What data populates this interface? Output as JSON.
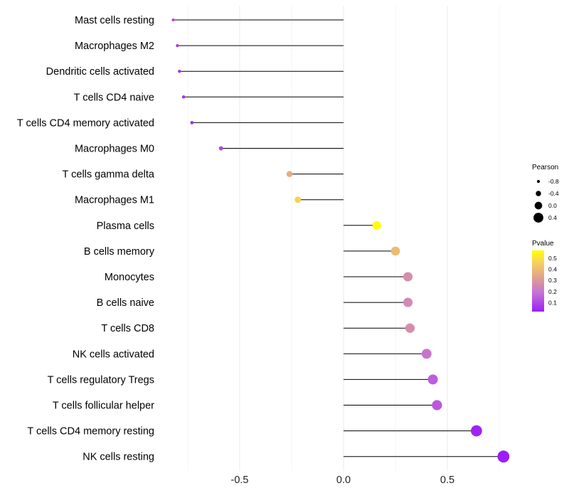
{
  "chart_data": {
    "type": "lollipop",
    "title": "",
    "xlabel": "",
    "ylabel": "",
    "xlim": [
      -0.83,
      0.78
    ],
    "x_ticks": [
      -0.5,
      0.0,
      0.5
    ],
    "x_tick_labels": [
      "-0.5",
      "0.0",
      "0.5"
    ],
    "grid": true,
    "categories": [
      "Mast cells resting",
      "Macrophages M2",
      "Dendritic cells activated",
      "T cells CD4 naive",
      "T cells CD4 memory activated",
      "Macrophages M0",
      "T cells gamma delta",
      "Macrophages M1",
      "Plasma cells",
      "B cells memory",
      "Monocytes",
      "B cells naive",
      "T cells CD8",
      "NK cells activated",
      "T cells regulatory  Tregs",
      "T cells follicular helper",
      "T cells CD4 memory resting",
      "NK cells resting"
    ],
    "pearson": [
      -0.82,
      -0.8,
      -0.79,
      -0.77,
      -0.73,
      -0.59,
      -0.26,
      -0.22,
      0.16,
      0.25,
      0.31,
      0.31,
      0.32,
      0.4,
      0.43,
      0.45,
      0.64,
      0.77
    ],
    "pvalue": [
      0.09,
      0.07,
      0.06,
      0.05,
      0.06,
      0.1,
      0.35,
      0.43,
      0.56,
      0.38,
      0.27,
      0.26,
      0.27,
      0.2,
      0.15,
      0.14,
      0.03,
      0.01
    ],
    "legend_size": {
      "title": "Pearson",
      "entries": [
        {
          "label": "-0.8",
          "value": -0.8
        },
        {
          "label": "-0.4",
          "value": -0.4
        },
        {
          "label": "0.0",
          "value": 0.0
        },
        {
          "label": "0.4",
          "value": 0.4
        }
      ]
    },
    "legend_color": {
      "title": "Pvalue",
      "range": [
        0.02,
        0.57
      ],
      "colors": [
        "#9b1ff5",
        "#c56fd6",
        "#e0a090",
        "#fde040",
        "#ffff00"
      ],
      "tick_labels": [
        "0.5",
        "0.4",
        "0.3",
        "0.2",
        "0.1"
      ],
      "tick_values": [
        0.5,
        0.4,
        0.3,
        0.2,
        0.1
      ]
    },
    "legend_position": "right"
  }
}
